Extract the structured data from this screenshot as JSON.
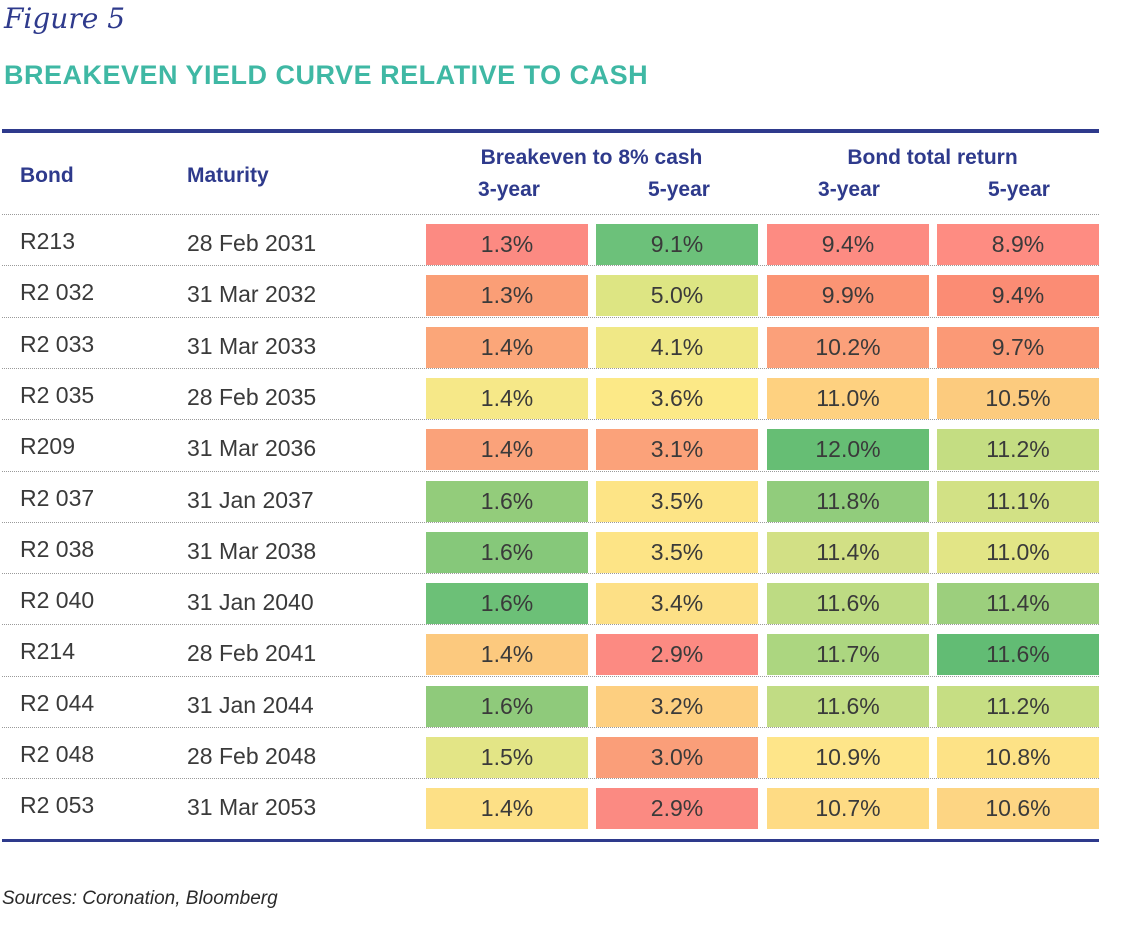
{
  "figure_label": "Figure 5",
  "title": "BREAKEVEN YIELD CURVE RELATIVE TO CASH",
  "headers": {
    "bond": "Bond",
    "maturity": "Maturity",
    "group_breakeven": "Breakeven to 8% cash",
    "group_total_return": "Bond total return",
    "three_year": "3-year",
    "five_year": "5-year"
  },
  "rows": [
    {
      "bond": "R213",
      "maturity": "28 Feb 2031",
      "values": [
        "1.3%",
        "9.1%",
        "9.4%",
        "8.9%"
      ],
      "colors": [
        "#fc8a82",
        "#6cc17a",
        "#fd8b82",
        "#fe8c82"
      ]
    },
    {
      "bond": "R2 032",
      "maturity": "31 Mar 2032",
      "values": [
        "1.3%",
        "5.0%",
        "9.9%",
        "9.4%"
      ],
      "colors": [
        "#fa9e76",
        "#dde583",
        "#fb9474",
        "#fb8c74"
      ]
    },
    {
      "bond": "R2 033",
      "maturity": "31 Mar 2033",
      "values": [
        "1.4%",
        "4.1%",
        "10.2%",
        "9.7%"
      ],
      "colors": [
        "#fba679",
        "#f0e886",
        "#fba07a",
        "#fb9976"
      ]
    },
    {
      "bond": "R2 035",
      "maturity": "28 Feb 2035",
      "values": [
        "1.4%",
        "3.6%",
        "11.0%",
        "10.5%"
      ],
      "colors": [
        "#f6e888",
        "#fce987",
        "#fed180",
        "#fccb7e"
      ]
    },
    {
      "bond": "R209",
      "maturity": "31 Mar 2036",
      "values": [
        "1.4%",
        "3.1%",
        "12.0%",
        "11.2%"
      ],
      "colors": [
        "#faa27a",
        "#fba27a",
        "#66be74",
        "#c4dd82"
      ]
    },
    {
      "bond": "R2 037",
      "maturity": "31 Jan 2037",
      "values": [
        "1.6%",
        "3.5%",
        "11.8%",
        "11.1%"
      ],
      "colors": [
        "#93cc7b",
        "#fde486",
        "#91cc7c",
        "#d2e185"
      ]
    },
    {
      "bond": "R2 038",
      "maturity": "31 Mar 2038",
      "values": [
        "1.6%",
        "3.5%",
        "11.4%",
        "11.0%"
      ],
      "colors": [
        "#86c87a",
        "#fde486",
        "#d2e085",
        "#e2e586"
      ]
    },
    {
      "bond": "R2 040",
      "maturity": "31 Jan 2040",
      "values": [
        "1.6%",
        "3.4%",
        "11.6%",
        "11.4%"
      ],
      "colors": [
        "#6cc077",
        "#fde086",
        "#bddb83",
        "#9ccf7d"
      ]
    },
    {
      "bond": "R214",
      "maturity": "28 Feb 2041",
      "values": [
        "1.4%",
        "2.9%",
        "11.7%",
        "11.6%"
      ],
      "colors": [
        "#fcc97e",
        "#fc8a82",
        "#acd680",
        "#62bc74"
      ]
    },
    {
      "bond": "R2 044",
      "maturity": "31 Jan 2044",
      "values": [
        "1.6%",
        "3.2%",
        "11.6%",
        "11.2%"
      ],
      "colors": [
        "#8fca7b",
        "#fdcf80",
        "#c1dc84",
        "#c6de83"
      ]
    },
    {
      "bond": "R2 048",
      "maturity": "28 Feb 2048",
      "values": [
        "1.5%",
        "3.0%",
        "10.9%",
        "10.8%"
      ],
      "colors": [
        "#e3e586",
        "#fa9e79",
        "#fee589",
        "#fde286"
      ]
    },
    {
      "bond": "R2 053",
      "maturity": "31 Mar 2053",
      "values": [
        "1.4%",
        "2.9%",
        "10.7%",
        "10.6%"
      ],
      "colors": [
        "#fde086",
        "#fb8a82",
        "#fedb84",
        "#fdd583"
      ]
    }
  ],
  "sources": "Sources: Coronation, Bloomberg"
}
